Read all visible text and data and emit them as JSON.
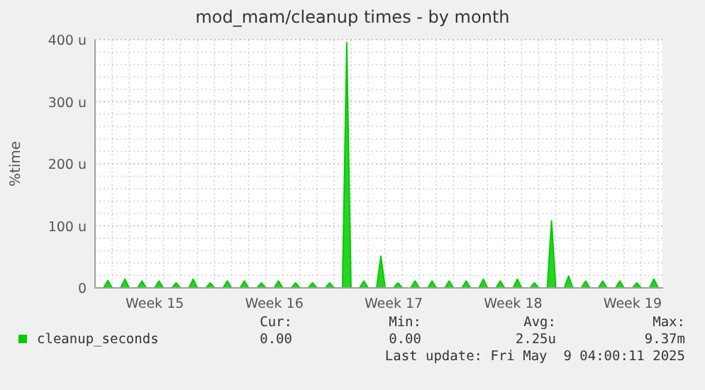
{
  "chart_data": {
    "type": "area",
    "title": "mod_mam/cleanup times - by month",
    "ylabel": "%time",
    "categories": [
      null,
      null,
      null,
      null,
      null,
      null,
      null,
      null,
      null,
      null,
      null,
      null,
      null,
      null,
      "Week 15",
      null,
      null,
      null,
      null,
      null,
      null,
      null,
      null,
      null,
      null,
      null,
      null,
      null,
      null,
      null,
      null,
      null,
      null,
      null,
      null,
      null,
      null,
      null,
      null,
      null,
      null,
      null,
      "Week 16",
      null,
      null,
      null,
      null,
      null,
      null,
      null,
      null,
      null,
      null,
      null,
      null,
      null,
      null,
      null,
      null,
      null,
      null,
      null,
      null,
      null,
      null,
      null,
      null,
      null,
      null,
      null,
      "Week 17",
      null,
      null,
      null,
      null,
      null,
      null,
      null,
      null,
      null,
      null,
      null,
      null,
      null,
      null,
      null,
      null,
      null,
      null,
      null,
      null,
      null,
      null,
      null,
      null,
      null,
      null,
      null,
      "Week 18",
      null,
      null,
      null,
      null,
      null,
      null,
      null,
      null,
      null,
      null,
      null,
      null,
      null,
      null,
      null,
      null,
      null,
      null,
      null,
      null,
      null,
      null,
      null,
      null,
      null,
      null,
      null,
      "Week 19",
      null,
      null,
      null,
      null,
      null,
      null,
      null
    ],
    "ylim": [
      0,
      400
    ],
    "yticks": [
      {
        "value": 0,
        "label": "0"
      },
      {
        "value": 20,
        "label": null
      },
      {
        "value": 40,
        "label": null
      },
      {
        "value": 60,
        "label": null
      },
      {
        "value": 80,
        "label": null
      },
      {
        "value": 100,
        "label": "100 u"
      },
      {
        "value": 120,
        "label": null
      },
      {
        "value": 140,
        "label": null
      },
      {
        "value": 160,
        "label": null
      },
      {
        "value": 180,
        "label": null
      },
      {
        "value": 200,
        "label": "200 u"
      },
      {
        "value": 220,
        "label": null
      },
      {
        "value": 240,
        "label": null
      },
      {
        "value": 260,
        "label": null
      },
      {
        "value": 280,
        "label": null
      },
      {
        "value": 300,
        "label": "300 u"
      },
      {
        "value": 320,
        "label": null
      },
      {
        "value": 340,
        "label": null
      },
      {
        "value": 360,
        "label": null
      },
      {
        "value": 380,
        "label": null
      },
      {
        "value": 400,
        "label": "400 u"
      }
    ],
    "grid": true,
    "legend": "bottom",
    "series": [
      {
        "name": "cleanup_seconds",
        "color": "#00cc00",
        "values": [
          0,
          0,
          0,
          12,
          0,
          0,
          0,
          14,
          0,
          0,
          0,
          11,
          0,
          0,
          0,
          11,
          0,
          0,
          0,
          8,
          0,
          0,
          0,
          14,
          0,
          0,
          0,
          8,
          0,
          0,
          0,
          11,
          0,
          0,
          0,
          11,
          0,
          0,
          0,
          8,
          0,
          0,
          0,
          11,
          0,
          0,
          0,
          8,
          0,
          0,
          0,
          8,
          0,
          0,
          0,
          8,
          0,
          0,
          0,
          395,
          0,
          0,
          0,
          11,
          0,
          0,
          0,
          51,
          0,
          0,
          0,
          8,
          0,
          0,
          0,
          11,
          0,
          0,
          0,
          11,
          0,
          0,
          0,
          11,
          0,
          0,
          0,
          11,
          0,
          0,
          0,
          14,
          0,
          0,
          0,
          11,
          0,
          0,
          0,
          14,
          0,
          0,
          0,
          8,
          0,
          0,
          0,
          108,
          0,
          0,
          0,
          19,
          0,
          0,
          0,
          11,
          0,
          0,
          0,
          11,
          0,
          0,
          0,
          11,
          0,
          0,
          0,
          8,
          0,
          0,
          0,
          14,
          0,
          0
        ]
      }
    ],
    "annotations": [
      "Cur:",
      "Min:",
      "Avg:",
      "Max:",
      "0.00",
      "0.00",
      "2.25u",
      "9.37m",
      "Last update: Fri May  9 04:00:11 2025"
    ]
  }
}
